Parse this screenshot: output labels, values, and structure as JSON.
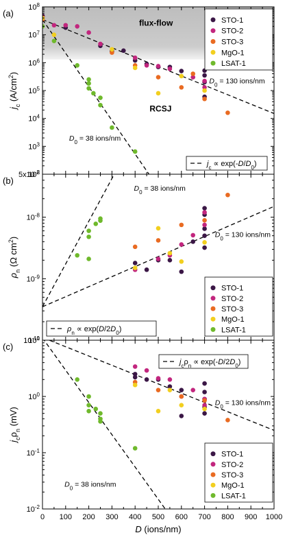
{
  "colors": {
    "STO-1": "#3b1746",
    "STO-2": "#c2267e",
    "STO-3": "#e96b22",
    "MgO-1": "#f2cf1f",
    "LSAT-1": "#6fb92c",
    "shade": "#cccccc"
  },
  "series_order": [
    "STO-1",
    "STO-2",
    "STO-3",
    "MgO-1",
    "LSAT-1"
  ],
  "x_axis": {
    "xlim": [
      0,
      1000
    ],
    "ticks": [
      0,
      100,
      200,
      300,
      400,
      500,
      600,
      700,
      800,
      900,
      1000
    ],
    "tick_labels": [
      "0",
      "100",
      "200",
      "300",
      "400",
      "500",
      "600",
      "700",
      "800",
      "900",
      "1000"
    ],
    "label_var": "D",
    "label_unit": " (ions/nm)"
  },
  "chart_data": [
    {
      "type": "scatter",
      "panel_label": "(a)",
      "ylabel_var": "j",
      "ylabel_sub": "c",
      "ylabel_unit": " (A/cm",
      "ylabel_sup": "2",
      "ylabel_close": ")",
      "yscale": "log",
      "ylim": [
        100,
        100000000
      ],
      "yticks": [
        {
          "value": 100,
          "base": "10",
          "exp": "2"
        },
        {
          "value": 1000,
          "base": "10",
          "exp": "3"
        },
        {
          "value": 10000,
          "base": "10",
          "exp": "4"
        },
        {
          "value": 100000,
          "base": "10",
          "exp": "5"
        },
        {
          "value": 1000000,
          "base": "10",
          "exp": "6"
        },
        {
          "value": 10000000,
          "base": "10",
          "exp": "7"
        },
        {
          "value": 100000000,
          "base": "10",
          "exp": "8"
        }
      ],
      "shaded_band": {
        "ymin": 1300000,
        "ymax": 100000000
      },
      "region_labels": [
        {
          "text": "flux-flow",
          "x": 490,
          "y": 21000000
        },
        {
          "text": "RCSJ",
          "x": 510,
          "y": 18000
        }
      ],
      "series": [
        {
          "name": "STO-1",
          "points": [
            [
              0,
              48000000
            ],
            [
              100,
              18000000
            ],
            [
              250,
              4000000
            ],
            [
              300,
              2600000
            ],
            [
              350,
              2700000
            ],
            [
              400,
              1200000
            ],
            [
              450,
              900000
            ],
            [
              500,
              700000
            ],
            [
              550,
              700000
            ],
            [
              600,
              500000
            ],
            [
              700,
              520000
            ],
            [
              700,
              350000
            ],
            [
              700,
              200000
            ],
            [
              700,
              60000
            ]
          ]
        },
        {
          "name": "STO-2",
          "points": [
            [
              0,
              45000000
            ],
            [
              50,
              22000000
            ],
            [
              100,
              22000000
            ],
            [
              150,
              20000000
            ],
            [
              200,
              12000000
            ],
            [
              250,
              4700000
            ],
            [
              400,
              1500000
            ],
            [
              450,
              800000
            ],
            [
              500,
              750000
            ],
            [
              550,
              600000
            ],
            [
              650,
              300000
            ],
            [
              700,
              220000
            ],
            [
              700,
              130000
            ]
          ]
        },
        {
          "name": "STO-3",
          "points": [
            [
              0,
              35000000
            ],
            [
              300,
              2300000
            ],
            [
              400,
              800000
            ],
            [
              500,
              300000
            ],
            [
              600,
              130000
            ],
            [
              650,
              400000
            ],
            [
              700,
              50000
            ],
            [
              800,
              16000
            ]
          ]
        },
        {
          "name": "MgO-1",
          "points": [
            [
              0,
              40000000
            ],
            [
              50,
              10000000
            ],
            [
              300,
              3000000
            ],
            [
              400,
              650000
            ],
            [
              500,
              80000
            ],
            [
              600,
              330000
            ],
            [
              700,
              100000
            ]
          ]
        },
        {
          "name": "LSAT-1",
          "points": [
            [
              0,
              20000000
            ],
            [
              50,
              6000000
            ],
            [
              150,
              800000
            ],
            [
              200,
              250000
            ],
            [
              200,
              180000
            ],
            [
              200,
              120000
            ],
            [
              220,
              80000
            ],
            [
              250,
              55000
            ],
            [
              250,
              30000
            ],
            [
              300,
              4700
            ],
            [
              400,
              650
            ]
          ]
        }
      ],
      "fit_lines": [
        {
          "D0": 130,
          "from": [
            0,
            35000000
          ],
          "to": [
            1000,
            15000
          ],
          "label_x": 720,
          "label_y": 180000
        },
        {
          "D0": 38,
          "from": [
            0,
            35000000
          ],
          "to": [
            460,
            100
          ],
          "label_x": 115,
          "label_y": 1600
        }
      ],
      "fit_label": {
        "var": "D",
        "sub": "0",
        "fast": " = 38 ions/nm",
        "slow": " = 130 ions/nm"
      },
      "fit_legend": {
        "var": "j",
        "sub": "c",
        "mid": " ∝ exp(-",
        "num": "D",
        "slash": "/",
        "den_var": "D",
        "den_sub": "0",
        "end": ")"
      },
      "fit_legend_box": [
        272,
        228,
        390,
        248
      ],
      "legend_box": [
        299,
        13,
        398,
        102
      ]
    },
    {
      "type": "scatter",
      "panel_label": "(b)",
      "ylabel_var": "ρ",
      "ylabel_sub": "n",
      "ylabel_unit": " (Ω cm",
      "ylabel_sup": "2",
      "ylabel_close": ")",
      "yscale": "log",
      "ylim": [
        1e-10,
        5e-08
      ],
      "yticks": [
        {
          "value": 1e-10,
          "base": "10",
          "exp": "-10"
        },
        {
          "value": 1e-09,
          "base": "10",
          "exp": "-9"
        },
        {
          "value": 1e-08,
          "base": "10",
          "exp": "-8"
        },
        {
          "value": 5e-08,
          "base": "5x10",
          "exp": "-8"
        }
      ],
      "series": [
        {
          "name": "STO-1",
          "points": [
            [
              400,
              1.8e-09
            ],
            [
              450,
              1.4e-09
            ],
            [
              500,
              2e-09
            ],
            [
              550,
              2e-09
            ],
            [
              600,
              1.3e-09
            ],
            [
              650,
              4e-09
            ],
            [
              700,
              1.4e-08
            ],
            [
              700,
              1.1e-08
            ],
            [
              700,
              6.5e-09
            ],
            [
              700,
              5e-09
            ],
            [
              700,
              3.2e-09
            ]
          ]
        },
        {
          "name": "STO-2",
          "points": [
            [
              400,
              1.4e-09
            ],
            [
              500,
              2.1e-09
            ],
            [
              550,
              2.4e-09
            ],
            [
              600,
              3.6e-09
            ],
            [
              650,
              5.1e-09
            ],
            [
              700,
              1.2e-08
            ],
            [
              700,
              7.5e-09
            ]
          ]
        },
        {
          "name": "STO-3",
          "points": [
            [
              400,
              3.3e-09
            ],
            [
              500,
              4.2e-09
            ],
            [
              600,
              7.5e-09
            ],
            [
              700,
              8.9e-09
            ],
            [
              800,
              2.3e-08
            ]
          ]
        },
        {
          "name": "MgO-1",
          "points": [
            [
              400,
              1.5e-09
            ],
            [
              500,
              6.6e-09
            ],
            [
              550,
              2.6e-09
            ],
            [
              600,
              1.9e-09
            ],
            [
              700,
              3.9e-09
            ]
          ]
        },
        {
          "name": "LSAT-1",
          "points": [
            [
              150,
              2.4e-09
            ],
            [
              200,
              6e-09
            ],
            [
              200,
              4.8e-09
            ],
            [
              200,
              2.1e-09
            ],
            [
              230,
              7.8e-09
            ],
            [
              250,
              8.8e-09
            ],
            [
              250,
              9.5e-09
            ]
          ]
        }
      ],
      "fit_lines": [
        {
          "D0": 130,
          "from": [
            0,
            3.5e-10
          ],
          "to": [
            1000,
            1.5e-08
          ],
          "label_x": 745,
          "label_y": 4.8e-09
        },
        {
          "D0": 38,
          "from": [
            0,
            3.5e-10
          ],
          "to": [
            310,
            5e-08
          ],
          "label_x": 395,
          "label_y": 2.7e-08
        }
      ],
      "fit_label": {
        "var": "D",
        "sub": "0",
        "fast": " = 38 ions/nm",
        "slow": " = 130 ions/nm"
      },
      "fit_legend": {
        "var": "ρ",
        "sub": "n",
        "mid": " ∝ exp(",
        "num": "D",
        "slash": "/2",
        "den_var": "D",
        "den_sub": "0",
        "end": ")"
      },
      "fit_legend_box": [
        68,
        468,
        228,
        490
      ],
      "legend_box": [
        299,
        404,
        398,
        490
      ]
    },
    {
      "type": "scatter",
      "panel_label": "(c)",
      "ylabel_var": "j",
      "ylabel_sub": "c",
      "ylabel_var2": "ρ",
      "ylabel_sub2": "n",
      "ylabel_unit": " (mV)",
      "yscale": "log",
      "ylim": [
        0.01,
        10
      ],
      "yticks": [
        {
          "value": 0.01,
          "base": "10",
          "exp": "-2"
        },
        {
          "value": 0.1,
          "base": "10",
          "exp": "-1"
        },
        {
          "value": 1,
          "base": "10",
          "exp": "0"
        },
        {
          "value": 10,
          "base": "10",
          "exp": "1"
        }
      ],
      "series": [
        {
          "name": "STO-1",
          "points": [
            [
              400,
              2.5
            ],
            [
              400,
              2.2
            ],
            [
              450,
              2.0
            ],
            [
              500,
              2.0
            ],
            [
              550,
              1.5
            ],
            [
              600,
              1.3
            ],
            [
              700,
              1.7
            ],
            [
              700,
              1.2
            ],
            [
              700,
              0.9
            ],
            [
              700,
              0.65
            ],
            [
              700,
              0.5
            ],
            [
              600,
              0.45
            ]
          ]
        },
        {
          "name": "STO-2",
          "points": [
            [
              400,
              3.4
            ],
            [
              450,
              2.9
            ],
            [
              500,
              2.1
            ],
            [
              550,
              2.0
            ],
            [
              600,
              1.0
            ],
            [
              650,
              1.3
            ],
            [
              700,
              0.9
            ],
            [
              700,
              0.7
            ]
          ]
        },
        {
          "name": "STO-3",
          "points": [
            [
              400,
              1.8
            ],
            [
              500,
              1.3
            ],
            [
              600,
              1.0
            ],
            [
              700,
              0.85
            ],
            [
              800,
              0.38
            ]
          ]
        },
        {
          "name": "MgO-1",
          "points": [
            [
              400,
              1.6
            ],
            [
              500,
              0.55
            ],
            [
              550,
              1.3
            ],
            [
              600,
              0.7
            ],
            [
              700,
              0.6
            ]
          ]
        },
        {
          "name": "LSAT-1",
          "points": [
            [
              150,
              2.0
            ],
            [
              200,
              1.0
            ],
            [
              200,
              0.7
            ],
            [
              200,
              0.55
            ],
            [
              230,
              0.6
            ],
            [
              250,
              0.5
            ],
            [
              250,
              0.4
            ],
            [
              250,
              0.36
            ],
            [
              400,
              0.12
            ]
          ]
        }
      ],
      "fit_lines": [
        {
          "D0": 130,
          "from": [
            30,
            10
          ],
          "to": [
            1000,
            0.25
          ],
          "label_x": 745,
          "label_y": 0.7
        },
        {
          "D0": 38,
          "from": [
            0,
            11
          ],
          "to": [
            530,
            0.01
          ],
          "label_x": 95,
          "label_y": 0.025
        }
      ],
      "fit_label": {
        "var": "D",
        "sub": "0",
        "fast": " = 38 ions/nm",
        "slow": " = 130 ions/nm"
      },
      "fit_legend": {
        "var": "j",
        "sub": "c",
        "var2": "ρ",
        "sub2": "n",
        "mid": " ∝ exp(-",
        "num": "D",
        "slash": "/2",
        "den_var": "D",
        "den_sub": "0",
        "end": ")"
      },
      "fit_legend_box": [
        232,
        517,
        362,
        537
      ],
      "legend_box": [
        299,
        646,
        398,
        732
      ]
    }
  ]
}
